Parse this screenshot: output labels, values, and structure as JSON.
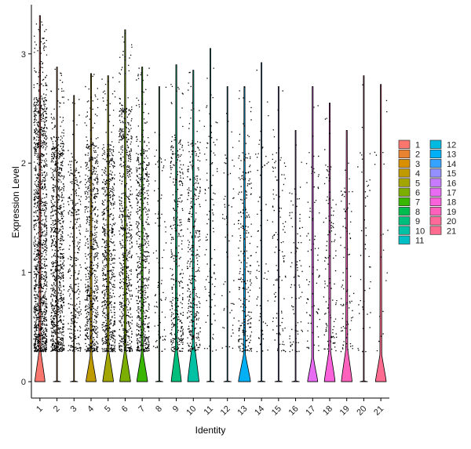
{
  "chart_data": {
    "type": "violin",
    "xlabel": "Identity",
    "ylabel": "Expression Level",
    "ylim": [
      -0.15,
      3.45
    ],
    "yticks": [
      0,
      1,
      2,
      3
    ],
    "grid": false,
    "legend_position": "right",
    "categories": [
      "1",
      "2",
      "3",
      "4",
      "5",
      "6",
      "7",
      "8",
      "9",
      "10",
      "11",
      "12",
      "13",
      "14",
      "15",
      "16",
      "17",
      "18",
      "19",
      "20",
      "21"
    ],
    "colors": [
      "#F8766D",
      "#EA8331",
      "#D89000",
      "#C09B00",
      "#A3A500",
      "#7CAE00",
      "#39B600",
      "#00BB4E",
      "#00BF7D",
      "#00C1A3",
      "#00BFC4",
      "#00BAE0",
      "#00B0F6",
      "#35A2FF",
      "#9590FF",
      "#C77CFF",
      "#E76BF3",
      "#FA62DB",
      "#FF62BC",
      "#FF6A98",
      "#FF6C8F"
    ],
    "max_values": [
      3.35,
      2.88,
      2.62,
      2.82,
      2.8,
      3.22,
      2.88,
      2.7,
      2.9,
      2.85,
      3.05,
      2.7,
      2.7,
      2.92,
      2.7,
      2.3,
      2.7,
      2.55,
      2.3,
      2.8,
      2.72
    ],
    "violin_height": [
      0.28,
      0.0,
      0.0,
      0.24,
      0.27,
      0.27,
      0.26,
      0.0,
      0.3,
      0.35,
      0.0,
      0.0,
      0.25,
      0.0,
      0.0,
      0.0,
      0.22,
      0.28,
      0.3,
      0.0,
      0.25
    ],
    "violin_width": [
      0.32,
      0.0,
      0.0,
      0.32,
      0.34,
      0.34,
      0.34,
      0.0,
      0.32,
      0.36,
      0.0,
      0.0,
      0.38,
      0.0,
      0.0,
      0.0,
      0.32,
      0.34,
      0.34,
      0.0,
      0.34
    ],
    "point_density": [
      1300,
      900,
      320,
      650,
      650,
      650,
      620,
      90,
      360,
      360,
      110,
      60,
      260,
      70,
      110,
      90,
      80,
      120,
      90,
      45,
      20
    ]
  }
}
